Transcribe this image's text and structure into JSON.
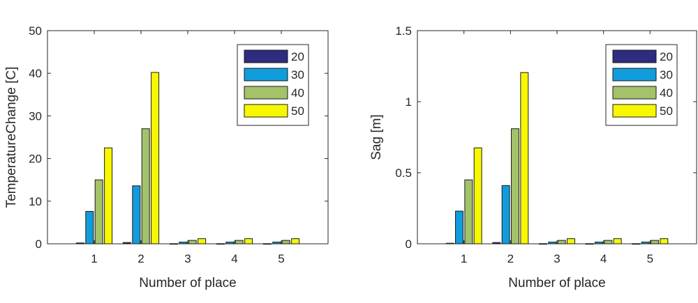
{
  "colors": {
    "20": "#2e2c7e",
    "30": "#119cdb",
    "40": "#a3c26a",
    "50": "#f7f700"
  },
  "chart_data": [
    {
      "type": "bar",
      "title": "",
      "xlabel": "Number of place",
      "ylabel": "TemperatureChange [C]",
      "categories": [
        "1",
        "2",
        "3",
        "4",
        "5"
      ],
      "ylim": [
        0,
        50
      ],
      "yticks": [
        0,
        10,
        20,
        30,
        40,
        50
      ],
      "ytick_labels": [
        "0",
        "10",
        "20",
        "30",
        "40",
        "50"
      ],
      "legend_position": "top-right",
      "grid": false,
      "series": [
        {
          "name": "20",
          "values": [
            0.2,
            0.3,
            0.03,
            0.03,
            0.03
          ]
        },
        {
          "name": "30",
          "values": [
            7.6,
            13.6,
            0.4,
            0.4,
            0.4
          ]
        },
        {
          "name": "40",
          "values": [
            15.0,
            27.0,
            0.8,
            0.8,
            0.8
          ]
        },
        {
          "name": "50",
          "values": [
            22.5,
            40.2,
            1.2,
            1.2,
            1.2
          ]
        }
      ]
    },
    {
      "type": "bar",
      "title": "",
      "xlabel": "Number of place",
      "ylabel": "Sag [m]",
      "categories": [
        "1",
        "2",
        "3",
        "4",
        "5"
      ],
      "ylim": [
        0,
        1.5
      ],
      "yticks": [
        0,
        0.5,
        1,
        1.5
      ],
      "ytick_labels": [
        "0",
        "0.5",
        "1",
        "1.5"
      ],
      "legend_position": "top-right",
      "grid": false,
      "series": [
        {
          "name": "20",
          "values": [
            0.004,
            0.009,
            0.001,
            0.001,
            0.001
          ]
        },
        {
          "name": "30",
          "values": [
            0.23,
            0.41,
            0.012,
            0.012,
            0.012
          ]
        },
        {
          "name": "40",
          "values": [
            0.45,
            0.81,
            0.024,
            0.024,
            0.024
          ]
        },
        {
          "name": "50",
          "values": [
            0.675,
            1.205,
            0.036,
            0.036,
            0.036
          ]
        }
      ]
    }
  ]
}
